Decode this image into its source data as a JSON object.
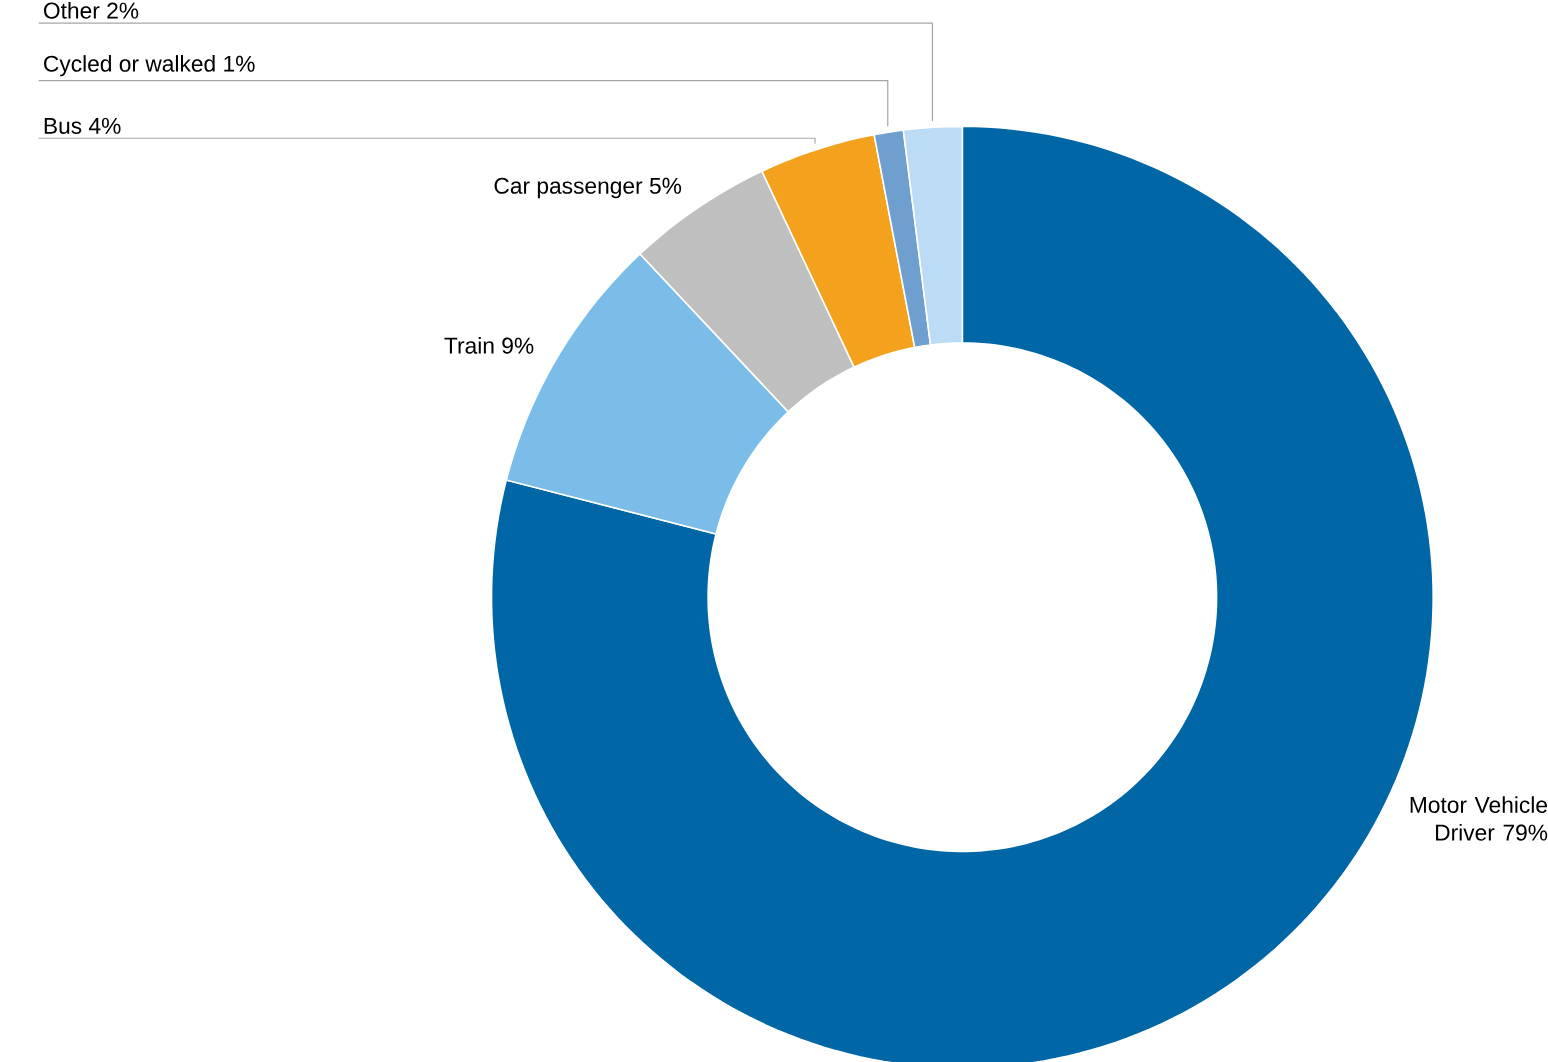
{
  "chart_data": {
    "type": "donut",
    "categories": [
      "Motor Vehicle Driver",
      "Train",
      "Car passenger",
      "Bus",
      "Cycled or walked",
      "Other"
    ],
    "values": [
      79,
      9,
      5,
      4,
      1,
      2
    ],
    "value_labels": [
      "79%",
      "9%",
      "5%",
      "4%",
      "1%",
      "2%"
    ],
    "colors": [
      "#0066a6",
      "#7bbde8",
      "#bfbfbf",
      "#f4a11d",
      "#6f9fcf",
      "#bcdcf5"
    ]
  }
}
